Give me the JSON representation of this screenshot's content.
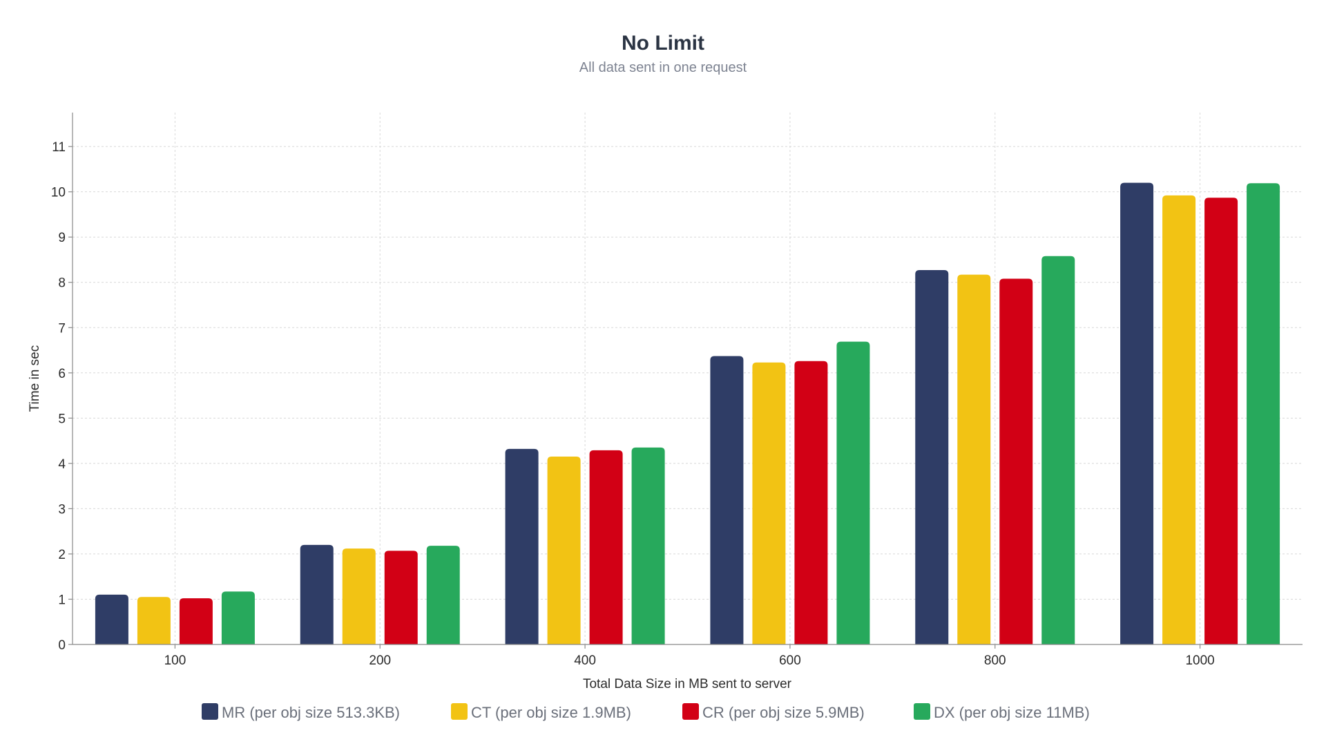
{
  "chart_data": {
    "type": "bar",
    "title": "No Limit",
    "subtitle": "All data sent in one request",
    "xlabel": "Total Data Size in MB sent to server",
    "ylabel": "Time in sec",
    "ylim": [
      0,
      11.75
    ],
    "yticks": [
      0,
      1,
      2,
      3,
      4,
      5,
      6,
      7,
      8,
      9,
      10,
      11
    ],
    "grid": true,
    "legend_position": "bottom",
    "categories": [
      "100",
      "200",
      "400",
      "600",
      "800",
      "1000"
    ],
    "series": [
      {
        "name": "MR (per obj size 513.3KB)",
        "color": "#2f3d66",
        "values": [
          1.1,
          2.2,
          4.32,
          6.37,
          8.27,
          10.2
        ]
      },
      {
        "name": "CT (per obj size 1.9MB)",
        "color": "#f2c314",
        "values": [
          1.05,
          2.12,
          4.15,
          6.23,
          8.17,
          9.92
        ]
      },
      {
        "name": "CR (per obj size 5.9MB)",
        "color": "#d20015",
        "values": [
          1.02,
          2.07,
          4.29,
          6.26,
          8.08,
          9.87
        ]
      },
      {
        "name": "DX (per obj size 11MB)",
        "color": "#27a95c",
        "values": [
          1.17,
          2.18,
          4.35,
          6.69,
          8.58,
          10.19
        ]
      }
    ]
  }
}
